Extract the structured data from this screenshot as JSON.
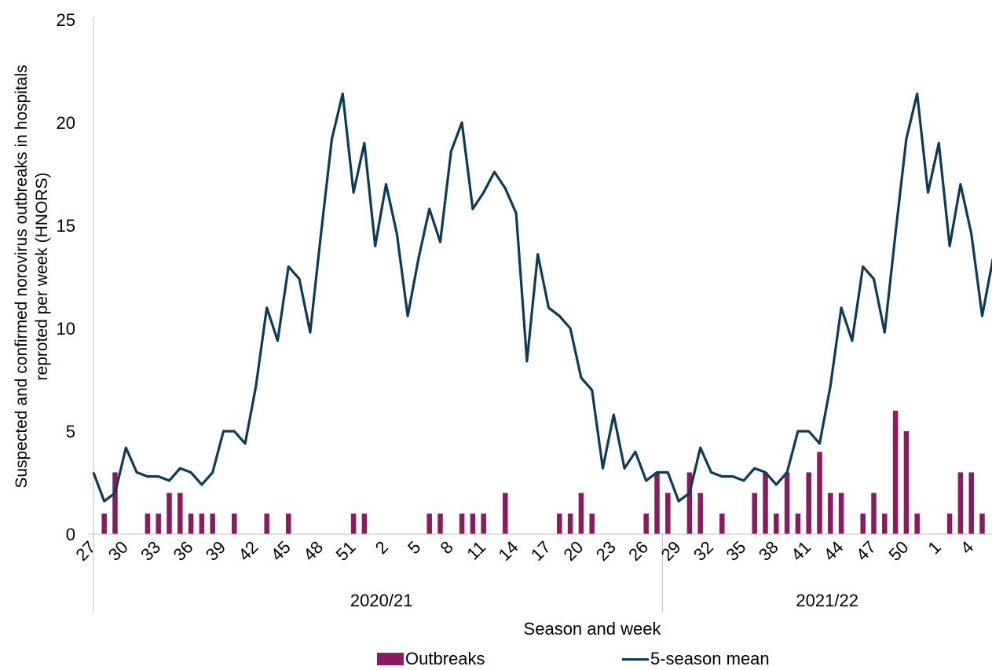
{
  "chart_data": {
    "type": "bar",
    "title": "",
    "xlabel": "Season and week",
    "ylabel": "Suspected and confirmed norovirus outbreaks in hospitals reproted per week (HNORS)",
    "ylim": [
      0,
      25
    ],
    "yticks": [
      0,
      5,
      10,
      15,
      20,
      25
    ],
    "grid": false,
    "legend_position": "bottom",
    "colors": {
      "bars": "#8B1A5E",
      "line": "#0C3B5A",
      "axis": "#BFBFBF"
    },
    "x_tick_labels": [
      "27",
      "30",
      "33",
      "36",
      "39",
      "42",
      "45",
      "48",
      "51",
      "2",
      "5",
      "8",
      "11",
      "14",
      "17",
      "20",
      "23",
      "26",
      "29",
      "32",
      "35",
      "38",
      "41",
      "44",
      "47",
      "50",
      "1",
      "4"
    ],
    "seasons": [
      {
        "label": "2020/21",
        "weeks": 53
      },
      {
        "label": "2021/22",
        "weeks": 31
      }
    ],
    "categories": [
      "27",
      "28",
      "29",
      "30",
      "31",
      "32",
      "33",
      "34",
      "35",
      "36",
      "37",
      "38",
      "39",
      "40",
      "41",
      "42",
      "43",
      "44",
      "45",
      "46",
      "47",
      "48",
      "49",
      "50",
      "51",
      "52",
      "53",
      "1",
      "2",
      "3",
      "4",
      "5",
      "6",
      "7",
      "8",
      "9",
      "10",
      "11",
      "12",
      "13",
      "14",
      "15",
      "16",
      "17",
      "18",
      "19",
      "20",
      "21",
      "22",
      "23",
      "24",
      "25",
      "26",
      "27",
      "28",
      "29",
      "30",
      "31",
      "32",
      "33",
      "34",
      "35",
      "36",
      "37",
      "38",
      "39",
      "40",
      "41",
      "42",
      "43",
      "44",
      "45",
      "46",
      "47",
      "48",
      "49",
      "50",
      "51",
      "52",
      "1",
      "2",
      "3",
      "4",
      "5"
    ],
    "series": [
      {
        "name": "Outbreaks",
        "type": "bar",
        "values": [
          0,
          1,
          3,
          0,
          0,
          1,
          1,
          2,
          2,
          1,
          1,
          1,
          0,
          1,
          0,
          0,
          1,
          0,
          1,
          0,
          0,
          0,
          0,
          0,
          1,
          1,
          0,
          0,
          0,
          0,
          0,
          1,
          1,
          0,
          1,
          1,
          1,
          0,
          2,
          0,
          0,
          0,
          0,
          1,
          1,
          2,
          1,
          0,
          0,
          0,
          0,
          1,
          3,
          2,
          0,
          3,
          2,
          0,
          1,
          0,
          0,
          2,
          3,
          1,
          3,
          1,
          3,
          4,
          2,
          2,
          0,
          1,
          2,
          1,
          6,
          5,
          1,
          0,
          0,
          1,
          3,
          3,
          1,
          0
        ]
      },
      {
        "name": "5-season mean",
        "type": "line",
        "values": [
          3.0,
          1.6,
          2.0,
          4.2,
          3.0,
          2.8,
          2.8,
          2.6,
          3.2,
          3.0,
          2.4,
          3.0,
          5.0,
          5.0,
          4.4,
          7.2,
          11.0,
          9.4,
          13.0,
          12.4,
          9.8,
          14.6,
          19.2,
          21.4,
          16.6,
          19.0,
          14.0,
          17.0,
          14.6,
          10.6,
          13.4,
          15.8,
          14.2,
          18.6,
          20.0,
          15.8,
          16.6,
          17.6,
          16.8,
          15.6,
          8.4,
          13.6,
          11.0,
          10.6,
          10.0,
          7.6,
          7.0,
          3.2,
          5.8,
          3.2,
          4.0,
          2.6,
          3.0,
          3.0,
          1.6,
          2.0,
          4.2,
          3.0,
          2.8,
          2.8,
          2.6,
          3.2,
          3.0,
          2.4,
          3.0,
          5.0,
          5.0,
          4.4,
          7.2,
          11.0,
          9.4,
          13.0,
          12.4,
          9.8,
          14.6,
          19.2,
          21.4,
          16.6,
          19.0,
          14.0,
          17.0,
          14.6,
          10.6,
          13.4
        ]
      }
    ]
  }
}
